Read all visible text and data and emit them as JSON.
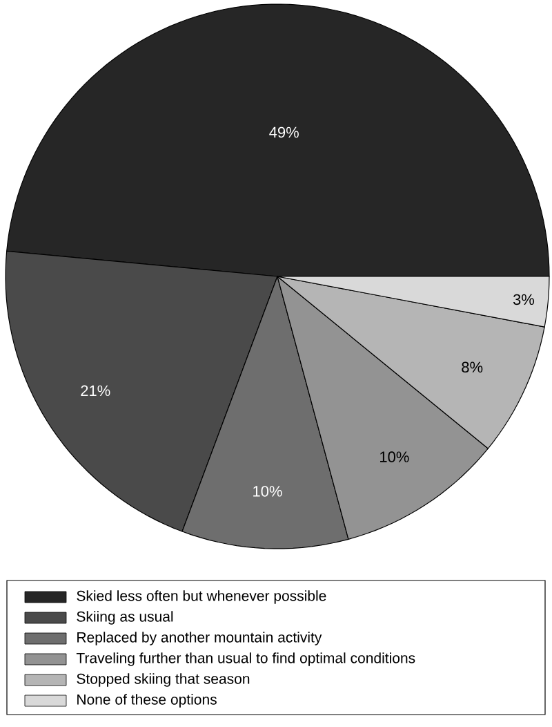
{
  "chart_data": {
    "type": "pie",
    "categories": [
      "Skied less often but whenever possible",
      "Skiing as usual",
      "Replaced by another mountain activity",
      "Traveling further than usual to find optimal conditions",
      "Stopped skiing that season",
      "None of these options"
    ],
    "values": [
      49,
      21,
      10,
      10,
      8,
      3
    ],
    "value_labels": [
      "49%",
      "21%",
      "10%",
      "10%",
      "8%",
      "3%"
    ],
    "colors": [
      "#262626",
      "#4a4a4a",
      "#6e6e6e",
      "#939393",
      "#b5b5b5",
      "#d9d9d9"
    ],
    "legend": "bottom"
  }
}
